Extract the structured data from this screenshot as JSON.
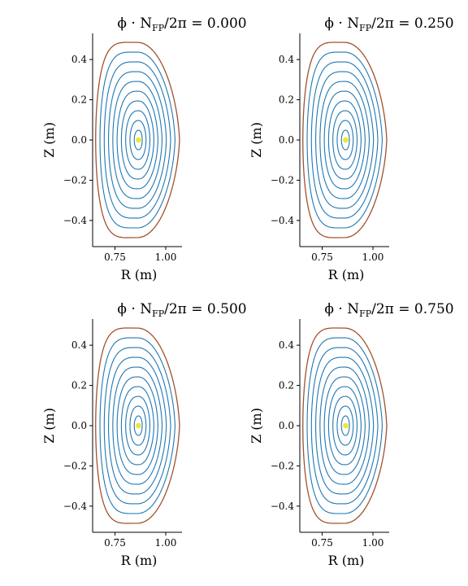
{
  "colors": {
    "background": "#ffffff",
    "inner_surfaces": "#1f77b4",
    "boundary": "#a0522d",
    "magnetic_axis": "#f0e442",
    "axis_lines": "#000000"
  },
  "chart_data": [
    {
      "type": "line",
      "title_prefix": "ϕ · N",
      "title_subscript": "FP",
      "title_suffix": "/2π = ",
      "title_value": "0.000",
      "xlabel": "R (m)",
      "ylabel": "Z (m)",
      "xlim": [
        0.64,
        1.08
      ],
      "ylim": [
        -0.53,
        0.53
      ],
      "xticks": [
        0.75,
        1.0
      ],
      "xtick_labels": [
        "0.75",
        "1.00"
      ],
      "yticks": [
        -0.4,
        -0.2,
        0.0,
        0.2,
        0.4
      ],
      "ytick_labels": [
        "−0.4",
        "−0.2",
        "0.0",
        "0.2",
        "0.4"
      ],
      "grid": false,
      "magnetic_axis": [
        0.866,
        0.0
      ],
      "boundary": {
        "r_inner": 0.655,
        "r_outer": 1.05,
        "z_max": 0.485
      },
      "flux_surfaces_rho": [
        0.1,
        0.2,
        0.3,
        0.4,
        0.5,
        0.6,
        0.7,
        0.8,
        0.9
      ]
    },
    {
      "type": "line",
      "title_prefix": "ϕ · N",
      "title_subscript": "FP",
      "title_suffix": "/2π = ",
      "title_value": "0.250",
      "xlabel": "R (m)",
      "ylabel": "Z (m)",
      "xlim": [
        0.64,
        1.08
      ],
      "ylim": [
        -0.53,
        0.53
      ],
      "xticks": [
        0.75,
        1.0
      ],
      "xtick_labels": [
        "0.75",
        "1.00"
      ],
      "yticks": [
        -0.4,
        -0.2,
        0.0,
        0.2,
        0.4
      ],
      "ytick_labels": [
        "−0.4",
        "−0.2",
        "0.0",
        "0.2",
        "0.4"
      ],
      "grid": false,
      "magnetic_axis": [
        0.866,
        0.0
      ],
      "boundary": {
        "r_inner": 0.655,
        "r_outer": 1.05,
        "z_max": 0.485
      },
      "flux_surfaces_rho": [
        0.1,
        0.2,
        0.3,
        0.4,
        0.5,
        0.6,
        0.7,
        0.8,
        0.9
      ]
    },
    {
      "type": "line",
      "title_prefix": "ϕ · N",
      "title_subscript": "FP",
      "title_suffix": "/2π = ",
      "title_value": "0.500",
      "xlabel": "R (m)",
      "ylabel": "Z (m)",
      "xlim": [
        0.64,
        1.08
      ],
      "ylim": [
        -0.53,
        0.53
      ],
      "xticks": [
        0.75,
        1.0
      ],
      "xtick_labels": [
        "0.75",
        "1.00"
      ],
      "yticks": [
        -0.4,
        -0.2,
        0.0,
        0.2,
        0.4
      ],
      "ytick_labels": [
        "−0.4",
        "−0.2",
        "0.0",
        "0.2",
        "0.4"
      ],
      "grid": false,
      "magnetic_axis": [
        0.866,
        0.0
      ],
      "boundary": {
        "r_inner": 0.655,
        "r_outer": 1.05,
        "z_max": 0.485
      },
      "flux_surfaces_rho": [
        0.1,
        0.2,
        0.3,
        0.4,
        0.5,
        0.6,
        0.7,
        0.8,
        0.9
      ]
    },
    {
      "type": "line",
      "title_prefix": "ϕ · N",
      "title_subscript": "FP",
      "title_suffix": "/2π = ",
      "title_value": "0.750",
      "xlabel": "R (m)",
      "ylabel": "Z (m)",
      "xlim": [
        0.64,
        1.08
      ],
      "ylim": [
        -0.53,
        0.53
      ],
      "xticks": [
        0.75,
        1.0
      ],
      "xtick_labels": [
        "0.75",
        "1.00"
      ],
      "yticks": [
        -0.4,
        -0.2,
        0.0,
        0.2,
        0.4
      ],
      "ytick_labels": [
        "−0.4",
        "−0.2",
        "0.0",
        "0.2",
        "0.4"
      ],
      "grid": false,
      "magnetic_axis": [
        0.866,
        0.0
      ],
      "boundary": {
        "r_inner": 0.655,
        "r_outer": 1.05,
        "z_max": 0.485
      },
      "flux_surfaces_rho": [
        0.1,
        0.2,
        0.3,
        0.4,
        0.5,
        0.6,
        0.7,
        0.8,
        0.9
      ]
    }
  ]
}
